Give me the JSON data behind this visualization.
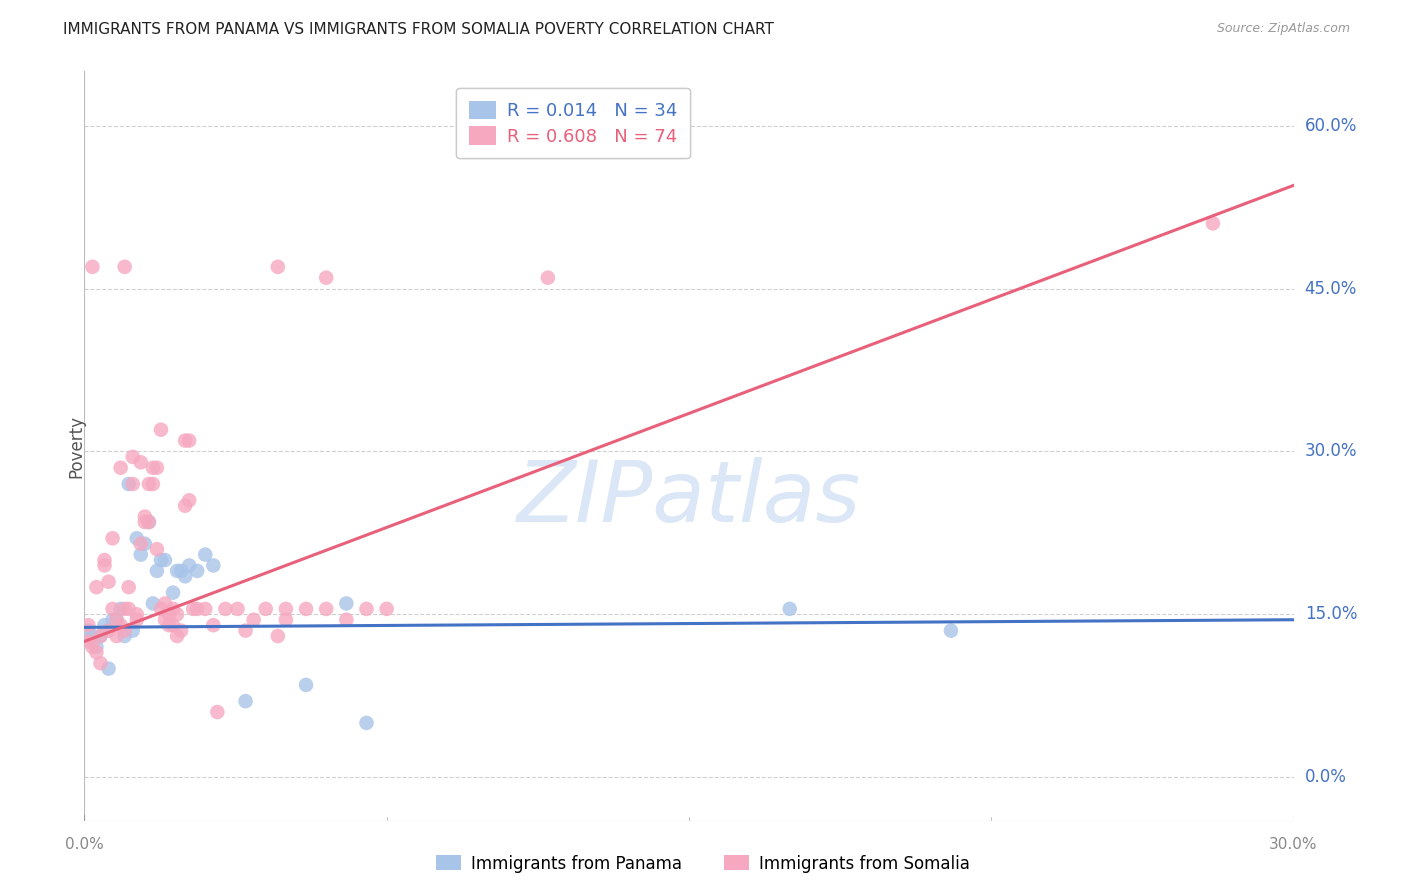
{
  "title": "IMMIGRANTS FROM PANAMA VS IMMIGRANTS FROM SOMALIA POVERTY CORRELATION CHART",
  "source": "Source: ZipAtlas.com",
  "ylabel": "Poverty",
  "right_yticklabels": [
    "0.0%",
    "15.0%",
    "30.0%",
    "45.0%",
    "60.0%"
  ],
  "right_ytick_vals": [
    0.0,
    0.15,
    0.3,
    0.45,
    0.6
  ],
  "xtick_labels": [
    "0.0%",
    "30.0%"
  ],
  "xtick_positions": [
    0.0,
    0.3
  ],
  "xlim": [
    0.0,
    0.3
  ],
  "ylim": [
    -0.04,
    0.65
  ],
  "panama_color": "#a8c4e8",
  "somalia_color": "#f5a8bf",
  "panama_line_color": "#4472c4",
  "somalia_line_color": "#e8607a",
  "panama_R": 0.014,
  "panama_N": 34,
  "somalia_R": 0.608,
  "somalia_N": 74,
  "watermark_text": "ZIPatlas",
  "legend_label_panama": "Immigrants from Panama",
  "legend_label_somalia": "Immigrants from Somalia",
  "panama_line_x": [
    0.0,
    0.3
  ],
  "panama_line_y": [
    0.138,
    0.145
  ],
  "somalia_line_x": [
    0.0,
    0.3
  ],
  "somalia_line_y": [
    0.125,
    0.545
  ],
  "panama_scatter": [
    [
      0.001,
      0.135
    ],
    [
      0.002,
      0.13
    ],
    [
      0.003,
      0.12
    ],
    [
      0.004,
      0.13
    ],
    [
      0.005,
      0.14
    ],
    [
      0.006,
      0.1
    ],
    [
      0.007,
      0.145
    ],
    [
      0.008,
      0.145
    ],
    [
      0.009,
      0.155
    ],
    [
      0.01,
      0.13
    ],
    [
      0.011,
      0.27
    ],
    [
      0.012,
      0.135
    ],
    [
      0.013,
      0.22
    ],
    [
      0.014,
      0.205
    ],
    [
      0.015,
      0.215
    ],
    [
      0.016,
      0.235
    ],
    [
      0.017,
      0.16
    ],
    [
      0.018,
      0.19
    ],
    [
      0.019,
      0.2
    ],
    [
      0.02,
      0.2
    ],
    [
      0.022,
      0.17
    ],
    [
      0.023,
      0.19
    ],
    [
      0.024,
      0.19
    ],
    [
      0.025,
      0.185
    ],
    [
      0.026,
      0.195
    ],
    [
      0.028,
      0.19
    ],
    [
      0.03,
      0.205
    ],
    [
      0.032,
      0.195
    ],
    [
      0.04,
      0.07
    ],
    [
      0.055,
      0.085
    ],
    [
      0.065,
      0.16
    ],
    [
      0.07,
      0.05
    ],
    [
      0.175,
      0.155
    ],
    [
      0.215,
      0.135
    ]
  ],
  "somalia_scatter": [
    [
      0.001,
      0.125
    ],
    [
      0.001,
      0.14
    ],
    [
      0.002,
      0.47
    ],
    [
      0.002,
      0.12
    ],
    [
      0.003,
      0.115
    ],
    [
      0.003,
      0.175
    ],
    [
      0.004,
      0.13
    ],
    [
      0.004,
      0.105
    ],
    [
      0.005,
      0.2
    ],
    [
      0.005,
      0.195
    ],
    [
      0.006,
      0.18
    ],
    [
      0.006,
      0.135
    ],
    [
      0.007,
      0.155
    ],
    [
      0.007,
      0.22
    ],
    [
      0.008,
      0.145
    ],
    [
      0.008,
      0.13
    ],
    [
      0.009,
      0.14
    ],
    [
      0.009,
      0.285
    ],
    [
      0.01,
      0.155
    ],
    [
      0.01,
      0.135
    ],
    [
      0.011,
      0.175
    ],
    [
      0.011,
      0.155
    ],
    [
      0.012,
      0.295
    ],
    [
      0.012,
      0.27
    ],
    [
      0.013,
      0.15
    ],
    [
      0.013,
      0.145
    ],
    [
      0.014,
      0.215
    ],
    [
      0.014,
      0.29
    ],
    [
      0.015,
      0.24
    ],
    [
      0.015,
      0.235
    ],
    [
      0.016,
      0.235
    ],
    [
      0.016,
      0.27
    ],
    [
      0.017,
      0.27
    ],
    [
      0.017,
      0.285
    ],
    [
      0.018,
      0.21
    ],
    [
      0.018,
      0.285
    ],
    [
      0.019,
      0.32
    ],
    [
      0.019,
      0.155
    ],
    [
      0.02,
      0.145
    ],
    [
      0.02,
      0.16
    ],
    [
      0.021,
      0.15
    ],
    [
      0.021,
      0.14
    ],
    [
      0.022,
      0.14
    ],
    [
      0.022,
      0.155
    ],
    [
      0.023,
      0.15
    ],
    [
      0.023,
      0.13
    ],
    [
      0.024,
      0.135
    ],
    [
      0.025,
      0.25
    ],
    [
      0.025,
      0.31
    ],
    [
      0.026,
      0.255
    ],
    [
      0.026,
      0.31
    ],
    [
      0.027,
      0.155
    ],
    [
      0.028,
      0.155
    ],
    [
      0.03,
      0.155
    ],
    [
      0.032,
      0.14
    ],
    [
      0.033,
      0.06
    ],
    [
      0.035,
      0.155
    ],
    [
      0.038,
      0.155
    ],
    [
      0.04,
      0.135
    ],
    [
      0.042,
      0.145
    ],
    [
      0.045,
      0.155
    ],
    [
      0.048,
      0.13
    ],
    [
      0.05,
      0.145
    ],
    [
      0.055,
      0.155
    ],
    [
      0.06,
      0.155
    ],
    [
      0.065,
      0.145
    ],
    [
      0.07,
      0.155
    ],
    [
      0.075,
      0.155
    ],
    [
      0.048,
      0.47
    ],
    [
      0.06,
      0.46
    ],
    [
      0.115,
      0.46
    ],
    [
      0.28,
      0.51
    ],
    [
      0.01,
      0.47
    ],
    [
      0.05,
      0.155
    ]
  ],
  "grid_color": "#d0d0d0",
  "grid_linestyle": "--",
  "title_color": "#222222",
  "axis_tick_color": "#4472c4",
  "ylabel_color": "#555555",
  "background_color": "#ffffff",
  "legend_border_color": "#cccccc",
  "watermark_color": "#b8d0ee",
  "watermark_alpha": 0.5
}
